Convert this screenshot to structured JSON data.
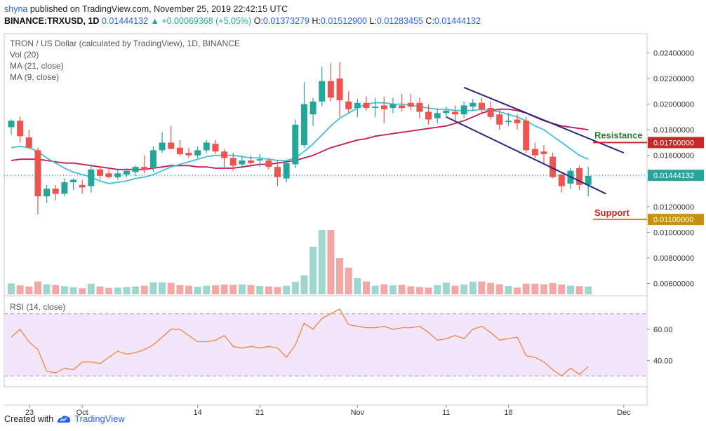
{
  "header": {
    "user": "shyna",
    "published_text": "published on TradingView.com, November 25, 2019 22:42:15 UTC",
    "symbol": "BINANCE:TRXUSD, 1D",
    "last": "0.01444132",
    "change": "+0.00069368 (+5.05%)",
    "o_label": "O:",
    "o": "0.01373279",
    "h_label": "H:",
    "h": "0.01512900",
    "l_label": "L:",
    "l": "0.01283455",
    "c_label": "C:",
    "c": "0.01444132"
  },
  "legend": {
    "title": "TRON / US Dollar (calculated by TradingView), 1D, BINANCE",
    "vol": "Vol (20)",
    "ma21": "MA (21, close)",
    "ma9": "MA (9, close)"
  },
  "rsi_label": "RSI (14, close)",
  "footer": {
    "created_with": "Created with",
    "brand": "TradingView"
  },
  "colors": {
    "up": "#26a69a",
    "down": "#ef5350",
    "ma9": "#3fc1d6",
    "ma21": "#c2185b",
    "channel": "#2b2a7a",
    "rsi": "#f57c32",
    "resistance": "#c62828",
    "support": "#c8900c",
    "last": "#26a69a"
  },
  "annotations": {
    "resistance_label": "Resistance",
    "resistance_price": "0.01700000",
    "resistance_value": 0.017,
    "support_label": "Support",
    "support_price": "0.01100000",
    "support_value": 0.011,
    "last_price": "0.01444132",
    "last_value": 0.01444132
  },
  "chart_data": {
    "type": "candlestick",
    "x_tick_labels": [
      {
        "label": "23",
        "day": 0
      },
      {
        "label": "Oct",
        "day": 8
      },
      {
        "label": "14",
        "day": 21
      },
      {
        "label": "21",
        "day": 28
      },
      {
        "label": "Nov",
        "day": 39
      },
      {
        "label": "11",
        "day": 49
      },
      {
        "label": "18",
        "day": 56
      },
      {
        "label": "Dec",
        "day": 69
      }
    ],
    "price_axis": {
      "ticks": [
        "0.02400000",
        "0.02200000",
        "0.02000000",
        "0.01800000",
        "0.01600000",
        "0.01200000",
        "0.01000000",
        "0.00800000",
        "0.00600000"
      ],
      "tick_values": [
        0.024,
        0.022,
        0.02,
        0.018,
        0.016,
        0.012,
        0.01,
        0.008,
        0.006
      ],
      "ylim": [
        0.0045,
        0.0255
      ]
    },
    "rsi_axis": {
      "ticks": [
        "60.00",
        "40.00"
      ],
      "tick_values": [
        60,
        40
      ],
      "upper": 70,
      "lower": 30
    },
    "candles": [
      {
        "o": 0.0182,
        "h": 0.0188,
        "l": 0.0176,
        "c": 0.0187
      },
      {
        "o": 0.0187,
        "h": 0.019,
        "l": 0.017,
        "c": 0.0175
      },
      {
        "o": 0.0174,
        "h": 0.018,
        "l": 0.0165,
        "c": 0.0166
      },
      {
        "o": 0.0164,
        "h": 0.0166,
        "l": 0.0114,
        "c": 0.0128
      },
      {
        "o": 0.0128,
        "h": 0.0137,
        "l": 0.0123,
        "c": 0.0134
      },
      {
        "o": 0.0134,
        "h": 0.0137,
        "l": 0.0125,
        "c": 0.013
      },
      {
        "o": 0.013,
        "h": 0.0142,
        "l": 0.0128,
        "c": 0.0139
      },
      {
        "o": 0.0139,
        "h": 0.0142,
        "l": 0.0133,
        "c": 0.0141
      },
      {
        "o": 0.0137,
        "h": 0.0141,
        "l": 0.013,
        "c": 0.0135
      },
      {
        "o": 0.0136,
        "h": 0.0152,
        "l": 0.0131,
        "c": 0.0149
      },
      {
        "o": 0.0149,
        "h": 0.0151,
        "l": 0.0141,
        "c": 0.0144
      },
      {
        "o": 0.0146,
        "h": 0.015,
        "l": 0.0142,
        "c": 0.0143
      },
      {
        "o": 0.0143,
        "h": 0.0149,
        "l": 0.0141,
        "c": 0.0146
      },
      {
        "o": 0.0145,
        "h": 0.015,
        "l": 0.0143,
        "c": 0.0148
      },
      {
        "o": 0.0147,
        "h": 0.0152,
        "l": 0.0144,
        "c": 0.0151
      },
      {
        "o": 0.0151,
        "h": 0.016,
        "l": 0.0146,
        "c": 0.0149
      },
      {
        "o": 0.015,
        "h": 0.0167,
        "l": 0.0147,
        "c": 0.0164
      },
      {
        "o": 0.0164,
        "h": 0.0178,
        "l": 0.0162,
        "c": 0.017
      },
      {
        "o": 0.017,
        "h": 0.0183,
        "l": 0.0165,
        "c": 0.0165
      },
      {
        "o": 0.0166,
        "h": 0.0172,
        "l": 0.016,
        "c": 0.0161
      },
      {
        "o": 0.0162,
        "h": 0.0166,
        "l": 0.0158,
        "c": 0.016
      },
      {
        "o": 0.016,
        "h": 0.0167,
        "l": 0.0158,
        "c": 0.0164
      },
      {
        "o": 0.0164,
        "h": 0.0172,
        "l": 0.0162,
        "c": 0.017
      },
      {
        "o": 0.0169,
        "h": 0.0172,
        "l": 0.0161,
        "c": 0.0163
      },
      {
        "o": 0.0163,
        "h": 0.0165,
        "l": 0.015,
        "c": 0.0158
      },
      {
        "o": 0.0158,
        "h": 0.0162,
        "l": 0.0148,
        "c": 0.0152
      },
      {
        "o": 0.0153,
        "h": 0.016,
        "l": 0.015,
        "c": 0.0156
      },
      {
        "o": 0.0156,
        "h": 0.016,
        "l": 0.0151,
        "c": 0.0154
      },
      {
        "o": 0.0156,
        "h": 0.0161,
        "l": 0.0151,
        "c": 0.0157
      },
      {
        "o": 0.0156,
        "h": 0.0158,
        "l": 0.0149,
        "c": 0.0151
      },
      {
        "o": 0.0151,
        "h": 0.0156,
        "l": 0.0136,
        "c": 0.0143
      },
      {
        "o": 0.0142,
        "h": 0.0155,
        "l": 0.0139,
        "c": 0.0154
      },
      {
        "o": 0.0153,
        "h": 0.0188,
        "l": 0.015,
        "c": 0.0184
      },
      {
        "o": 0.0168,
        "h": 0.0217,
        "l": 0.0166,
        "c": 0.02
      },
      {
        "o": 0.0192,
        "h": 0.0205,
        "l": 0.0183,
        "c": 0.0202
      },
      {
        "o": 0.0202,
        "h": 0.0229,
        "l": 0.0198,
        "c": 0.0218
      },
      {
        "o": 0.0218,
        "h": 0.0232,
        "l": 0.0202,
        "c": 0.0205
      },
      {
        "o": 0.022,
        "h": 0.0233,
        "l": 0.019,
        "c": 0.0203
      },
      {
        "o": 0.0202,
        "h": 0.021,
        "l": 0.0193,
        "c": 0.0196
      },
      {
        "o": 0.0197,
        "h": 0.0204,
        "l": 0.019,
        "c": 0.0201
      },
      {
        "o": 0.0201,
        "h": 0.0206,
        "l": 0.0195,
        "c": 0.0197
      },
      {
        "o": 0.0197,
        "h": 0.0205,
        "l": 0.019,
        "c": 0.0198
      },
      {
        "o": 0.0199,
        "h": 0.0206,
        "l": 0.0185,
        "c": 0.0196
      },
      {
        "o": 0.0197,
        "h": 0.0205,
        "l": 0.0193,
        "c": 0.02
      },
      {
        "o": 0.0199,
        "h": 0.0208,
        "l": 0.0194,
        "c": 0.0197
      },
      {
        "o": 0.0201,
        "h": 0.0208,
        "l": 0.0195,
        "c": 0.0198
      },
      {
        "o": 0.0201,
        "h": 0.0205,
        "l": 0.0189,
        "c": 0.0194
      },
      {
        "o": 0.0194,
        "h": 0.02,
        "l": 0.0184,
        "c": 0.0188
      },
      {
        "o": 0.0189,
        "h": 0.0196,
        "l": 0.0185,
        "c": 0.0193
      },
      {
        "o": 0.0193,
        "h": 0.0198,
        "l": 0.019,
        "c": 0.0195
      },
      {
        "o": 0.0194,
        "h": 0.0199,
        "l": 0.0187,
        "c": 0.0192
      },
      {
        "o": 0.0192,
        "h": 0.0202,
        "l": 0.0189,
        "c": 0.0199
      },
      {
        "o": 0.0198,
        "h": 0.0204,
        "l": 0.0195,
        "c": 0.0201
      },
      {
        "o": 0.0201,
        "h": 0.0205,
        "l": 0.0193,
        "c": 0.0196
      },
      {
        "o": 0.0197,
        "h": 0.0202,
        "l": 0.0188,
        "c": 0.019
      },
      {
        "o": 0.0192,
        "h": 0.0196,
        "l": 0.018,
        "c": 0.0184
      },
      {
        "o": 0.0186,
        "h": 0.0193,
        "l": 0.0183,
        "c": 0.0187
      },
      {
        "o": 0.0188,
        "h": 0.0192,
        "l": 0.018,
        "c": 0.0185
      },
      {
        "o": 0.0187,
        "h": 0.019,
        "l": 0.0162,
        "c": 0.0164
      },
      {
        "o": 0.0165,
        "h": 0.017,
        "l": 0.0158,
        "c": 0.016
      },
      {
        "o": 0.0163,
        "h": 0.0168,
        "l": 0.0153,
        "c": 0.0161
      },
      {
        "o": 0.0159,
        "h": 0.0162,
        "l": 0.0142,
        "c": 0.0143
      },
      {
        "o": 0.0145,
        "h": 0.0146,
        "l": 0.0131,
        "c": 0.0136
      },
      {
        "o": 0.0138,
        "h": 0.015,
        "l": 0.0134,
        "c": 0.0148
      },
      {
        "o": 0.015,
        "h": 0.0152,
        "l": 0.0133,
        "c": 0.0137
      },
      {
        "o": 0.0137,
        "h": 0.0151,
        "l": 0.0128,
        "c": 0.0144
      }
    ],
    "volume": [
      0.78,
      0.64,
      0.56,
      0.92,
      0.72,
      0.66,
      0.58,
      0.5,
      0.44,
      0.76,
      0.56,
      0.46,
      0.48,
      0.52,
      0.56,
      0.62,
      0.86,
      0.86,
      0.82,
      0.66,
      0.62,
      0.54,
      0.62,
      0.64,
      0.7,
      0.68,
      0.7,
      0.66,
      0.6,
      0.56,
      0.52,
      0.62,
      0.9,
      1.35,
      3.4,
      4.6,
      4.6,
      2.6,
      1.9,
      1.15,
      0.92,
      0.62,
      0.72,
      0.64,
      0.68,
      0.58,
      0.52,
      0.48,
      0.66,
      0.84,
      0.62,
      0.7,
      0.9,
      0.92,
      0.82,
      0.72,
      0.6,
      0.48,
      0.76,
      0.76,
      0.72,
      0.8,
      0.7,
      0.62,
      0.58,
      0.56
    ],
    "volume_scale": 0.00185,
    "ma9": [
      0.0166,
      0.0167,
      0.0166,
      0.0163,
      0.0158,
      0.0154,
      0.015,
      0.0147,
      0.0145,
      0.0143,
      0.014,
      0.0138,
      0.0139,
      0.014,
      0.0142,
      0.0143,
      0.0145,
      0.0148,
      0.0151,
      0.0153,
      0.0155,
      0.0157,
      0.0159,
      0.016,
      0.016,
      0.016,
      0.0159,
      0.0158,
      0.0158,
      0.0157,
      0.0156,
      0.0156,
      0.0158,
      0.0163,
      0.0169,
      0.0176,
      0.0183,
      0.0189,
      0.0193,
      0.0197,
      0.02,
      0.0201,
      0.0201,
      0.02,
      0.02,
      0.0199,
      0.0198,
      0.0197,
      0.0196,
      0.0196,
      0.0195,
      0.0195,
      0.0195,
      0.0196,
      0.0195,
      0.0194,
      0.0192,
      0.019,
      0.0187,
      0.0183,
      0.018,
      0.0175,
      0.017,
      0.0165,
      0.016,
      0.0157
    ],
    "ma21": [
      0.0156,
      0.0157,
      0.0157,
      0.0157,
      0.0156,
      0.0155,
      0.0154,
      0.0154,
      0.0153,
      0.0152,
      0.0151,
      0.015,
      0.0149,
      0.0149,
      0.0149,
      0.0149,
      0.015,
      0.0151,
      0.0152,
      0.0152,
      0.0152,
      0.0151,
      0.0151,
      0.015,
      0.015,
      0.015,
      0.0151,
      0.0152,
      0.0153,
      0.0153,
      0.0154,
      0.0155,
      0.0156,
      0.0158,
      0.016,
      0.0163,
      0.0166,
      0.0168,
      0.017,
      0.0172,
      0.0173,
      0.0175,
      0.0176,
      0.0177,
      0.0178,
      0.0179,
      0.018,
      0.0181,
      0.0182,
      0.0183,
      0.0185,
      0.0187,
      0.019,
      0.0193,
      0.0195,
      0.0196,
      0.0196,
      0.0195,
      0.0193,
      0.019,
      0.0187,
      0.0185,
      0.0183,
      0.0182,
      0.0181,
      0.018
    ],
    "rsi": [
      55,
      60,
      52,
      47,
      33,
      32,
      35,
      34,
      39,
      39,
      38,
      42,
      46,
      44,
      45,
      47,
      50,
      55,
      60,
      60,
      56,
      52,
      52,
      53,
      56,
      49,
      48,
      49,
      48,
      49,
      48,
      42,
      50,
      64,
      60,
      67,
      70,
      73,
      63,
      62,
      61,
      61,
      62,
      60,
      61,
      61,
      62,
      58,
      53,
      54,
      56,
      54,
      60,
      62,
      58,
      53,
      54,
      55,
      43,
      42,
      39,
      34,
      30,
      35,
      31,
      36
    ],
    "channel": {
      "upper": [
        {
          "day": 51,
          "value": 0.0213
        },
        {
          "day": 69,
          "value": 0.0162
        }
      ],
      "lower": [
        {
          "day": 49,
          "value": 0.019
        },
        {
          "day": 67,
          "value": 0.013
        }
      ]
    }
  }
}
